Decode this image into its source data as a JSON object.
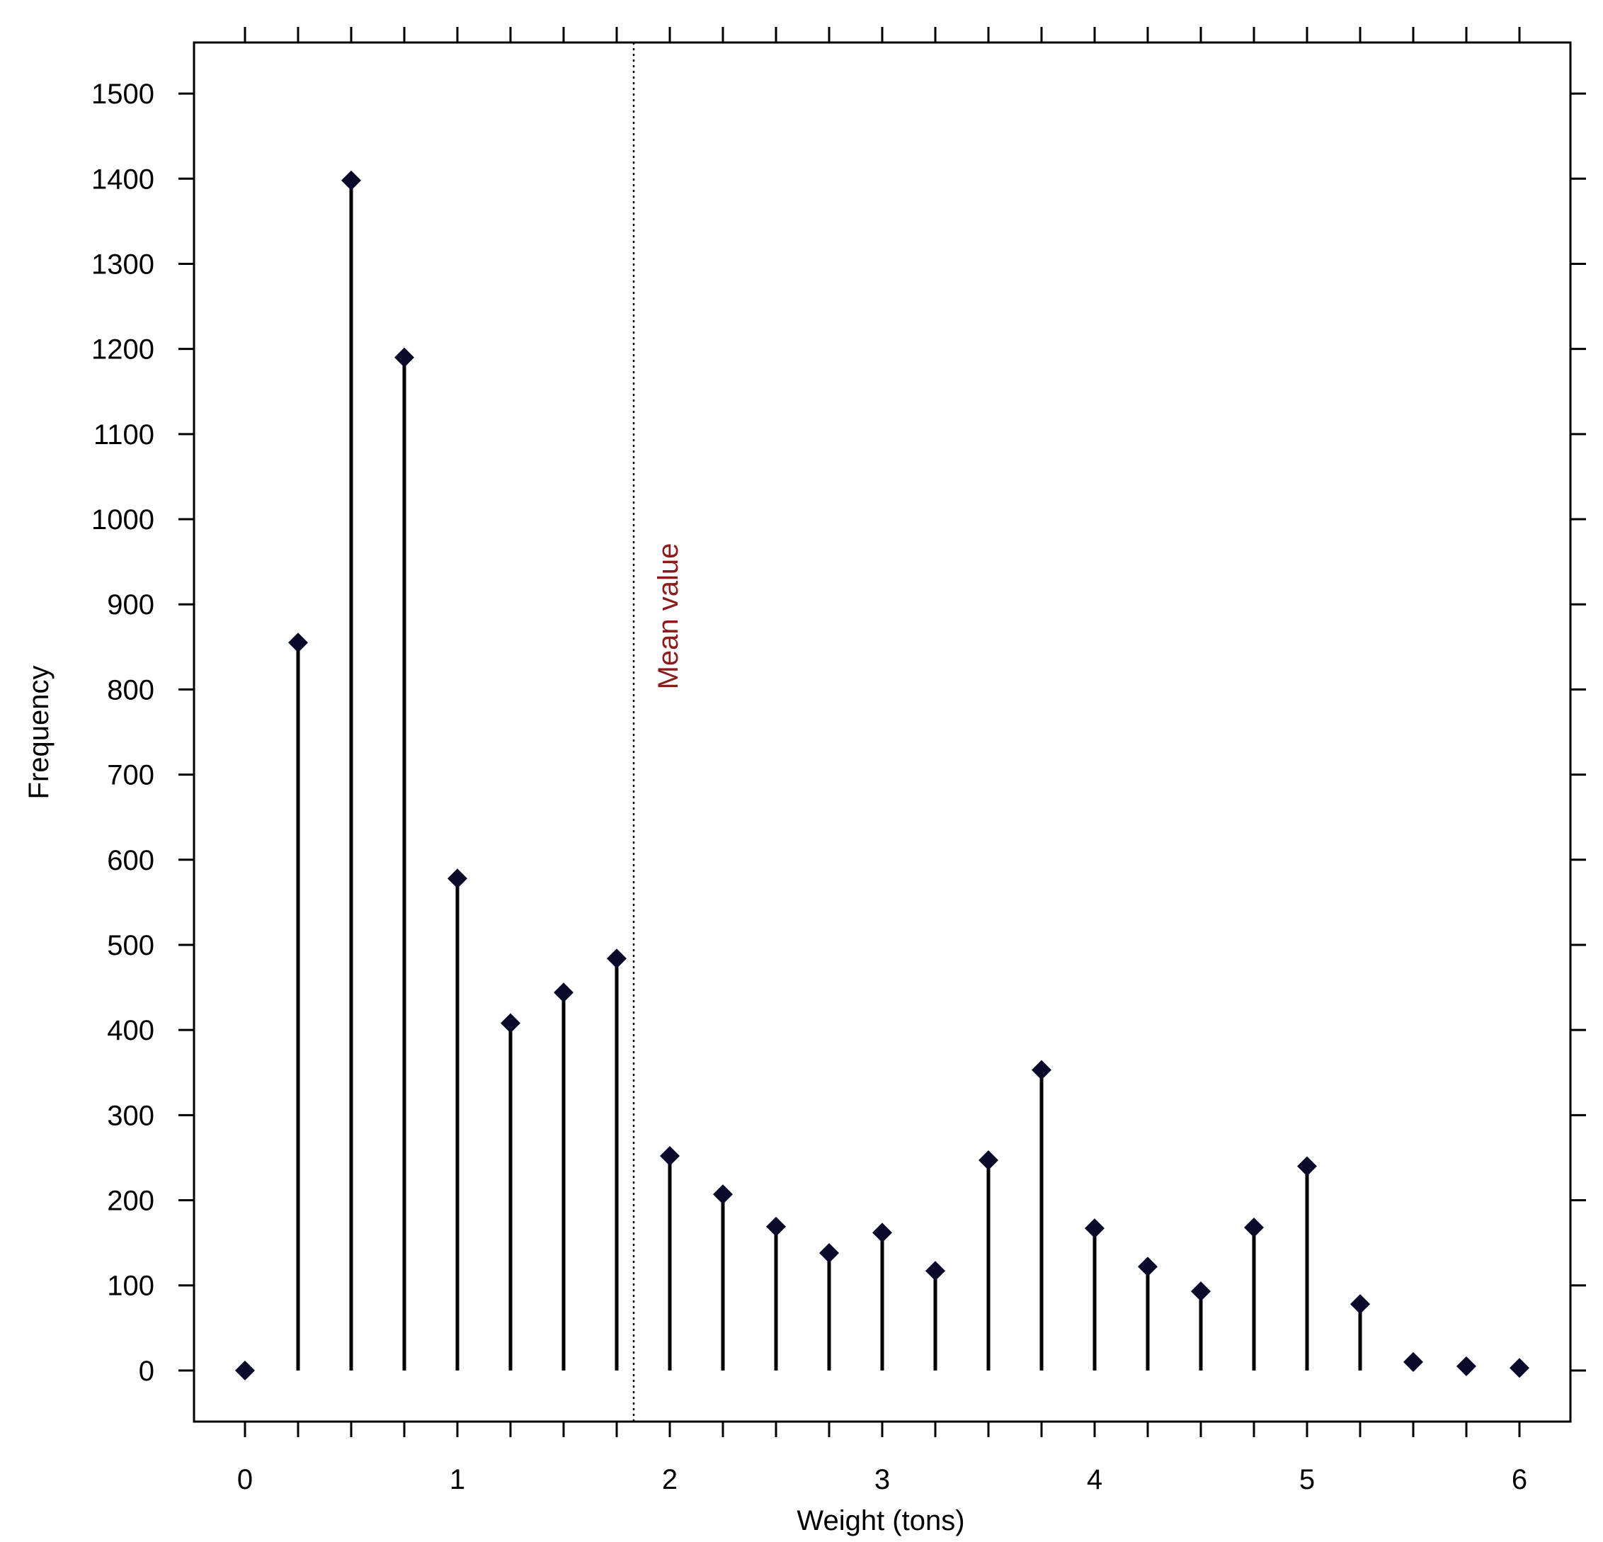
{
  "chart_data": {
    "type": "scatter",
    "style": "stem (needle) plot with diamond markers",
    "xlabel": "Weight (tons)",
    "ylabel": "Frequency",
    "x_ticks": [
      "0",
      "1",
      "2",
      "3",
      "4",
      "5",
      "6"
    ],
    "y_ticks": [
      "0",
      "100",
      "200",
      "300",
      "400",
      "500",
      "600",
      "700",
      "800",
      "900",
      "1000",
      "1100",
      "1200",
      "1300",
      "1400",
      "1500"
    ],
    "xlim": [
      -0.24,
      6.24
    ],
    "ylim": [
      -60,
      1560
    ],
    "minor_x_tick_step": 0.25,
    "grid": false,
    "points": [
      {
        "x": 0,
        "y": 0
      },
      {
        "x": 0.25,
        "y": 855
      },
      {
        "x": 0.5,
        "y": 1398
      },
      {
        "x": 0.75,
        "y": 1190
      },
      {
        "x": 1,
        "y": 578
      },
      {
        "x": 1.25,
        "y": 408
      },
      {
        "x": 1.5,
        "y": 444
      },
      {
        "x": 1.75,
        "y": 484
      },
      {
        "x": 2,
        "y": 252
      },
      {
        "x": 2.25,
        "y": 207
      },
      {
        "x": 2.5,
        "y": 169
      },
      {
        "x": 2.75,
        "y": 138
      },
      {
        "x": 3,
        "y": 162
      },
      {
        "x": 3.25,
        "y": 117
      },
      {
        "x": 3.5,
        "y": 247
      },
      {
        "x": 3.75,
        "y": 353
      },
      {
        "x": 4,
        "y": 167
      },
      {
        "x": 4.25,
        "y": 122
      },
      {
        "x": 4.5,
        "y": 93
      },
      {
        "x": 4.75,
        "y": 168
      },
      {
        "x": 5,
        "y": 240
      },
      {
        "x": 5.25,
        "y": 78
      },
      {
        "x": 5.5,
        "y": 10
      },
      {
        "x": 5.75,
        "y": 5
      },
      {
        "x": 6,
        "y": 3
      }
    ],
    "mean_line": {
      "x": 1.83,
      "label": "Mean value",
      "style": "dotted"
    },
    "colors": {
      "marker": "#0a0a2a",
      "stem": "#000000",
      "mean_label": "#8b1a1a"
    }
  }
}
